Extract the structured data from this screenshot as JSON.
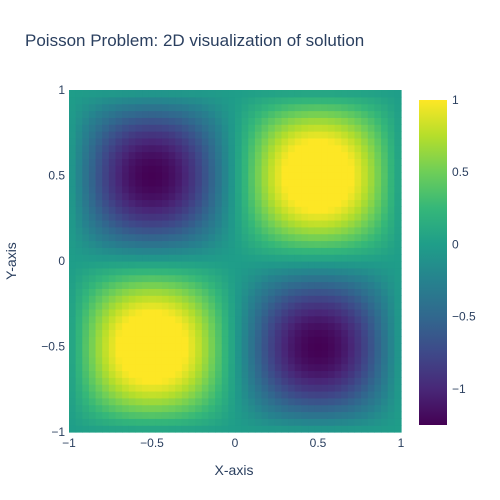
{
  "chart_data": {
    "type": "heatmap",
    "title": "Poisson Problem: 2D visualization of solution",
    "xlabel": "X-axis",
    "ylabel": "Y-axis",
    "xlim": [
      -1,
      1
    ],
    "ylim": [
      -1,
      1
    ],
    "x_ticks": [
      "−1",
      "−0.5",
      "0",
      "0.5",
      "1"
    ],
    "y_ticks": [
      "−1",
      "−0.5",
      "0",
      "0.5",
      "1"
    ],
    "x_tick_values": [
      -1,
      -0.5,
      0,
      0.5,
      1
    ],
    "y_tick_values": [
      -1,
      -0.5,
      0,
      0.5,
      1
    ],
    "colorscale": "Viridis",
    "z_range": [
      -1.25,
      1
    ],
    "colorbar_ticks": [
      "1",
      "0.5",
      "0",
      "−0.5",
      "−1"
    ],
    "colorbar_tick_values": [
      1,
      0.5,
      0,
      -0.5,
      -1
    ],
    "grid": false,
    "grid_size": 50,
    "colors": [
      "#440154",
      "#482878",
      "#3e4989",
      "#31688e",
      "#26828e",
      "#1f9e89",
      "#35b779",
      "#6ece58",
      "#b5de2b",
      "#fde725"
    ]
  }
}
